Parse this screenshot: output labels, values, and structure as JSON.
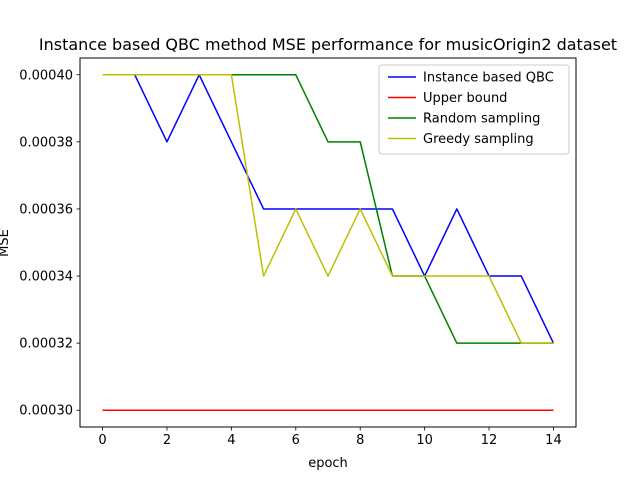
{
  "chart_data": {
    "type": "line",
    "title": "Instance based QBC method MSE performance for musicOrigin2 dataset",
    "xlabel": "epoch",
    "ylabel": "MSE",
    "xlim": [
      -0.7,
      14.7
    ],
    "ylim": [
      0.000295,
      0.000405
    ],
    "xticks": [
      0,
      2,
      4,
      6,
      8,
      10,
      12,
      14
    ],
    "xtick_labels": [
      "0",
      "2",
      "4",
      "6",
      "8",
      "10",
      "12",
      "14"
    ],
    "yticks": [
      0.0003,
      0.00032,
      0.00034,
      0.00036,
      0.00038,
      0.0004
    ],
    "ytick_labels": [
      "0.00030",
      "0.00032",
      "0.00034",
      "0.00036",
      "0.00038",
      "0.00040"
    ],
    "grid": false,
    "legend_position": "top-right",
    "x": [
      0,
      1,
      2,
      3,
      4,
      5,
      6,
      7,
      8,
      9,
      10,
      11,
      12,
      13,
      14
    ],
    "series": [
      {
        "name": "Instance based QBC",
        "color": "#0000ff",
        "values": [
          0.0004,
          0.0004,
          0.00038,
          0.0004,
          0.00038,
          0.00036,
          0.00036,
          0.00036,
          0.00036,
          0.00036,
          0.00034,
          0.00036,
          0.00034,
          0.00034,
          0.00032
        ]
      },
      {
        "name": "Upper bound",
        "color": "#ff0000",
        "values": [
          0.0003,
          0.0003,
          0.0003,
          0.0003,
          0.0003,
          0.0003,
          0.0003,
          0.0003,
          0.0003,
          0.0003,
          0.0003,
          0.0003,
          0.0003,
          0.0003,
          0.0003
        ]
      },
      {
        "name": "Random sampling",
        "color": "#008000",
        "values": [
          0.0004,
          0.0004,
          0.0004,
          0.0004,
          0.0004,
          0.0004,
          0.0004,
          0.00038,
          0.00038,
          0.00034,
          0.00034,
          0.00032,
          0.00032,
          0.00032,
          0.00032
        ]
      },
      {
        "name": "Greedy sampling",
        "color": "#bfbf00",
        "values": [
          0.0004,
          0.0004,
          0.0004,
          0.0004,
          0.0004,
          0.00034,
          0.00036,
          0.00034,
          0.00036,
          0.00034,
          0.00034,
          0.00034,
          0.00034,
          0.00032,
          0.00032
        ]
      }
    ]
  }
}
